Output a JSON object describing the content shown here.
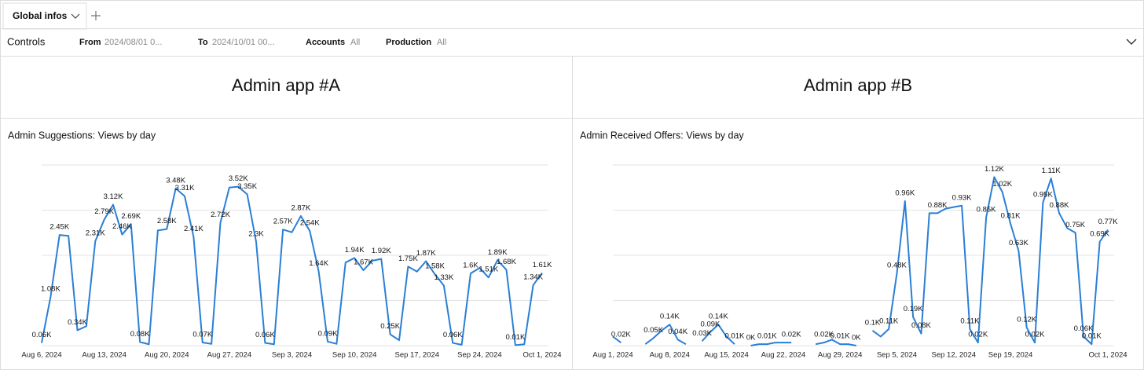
{
  "tabs": [
    {
      "label": "Global infos"
    }
  ],
  "controls": {
    "title": "Controls",
    "filters": [
      {
        "label": "From",
        "value": "2024/08/01 0..."
      },
      {
        "label": "To",
        "value": "2024/10/01 00..."
      },
      {
        "label": "Accounts",
        "value": "All"
      },
      {
        "label": "Production",
        "value": "All"
      }
    ]
  },
  "sections": [
    {
      "title": "Admin app #A"
    },
    {
      "title": "Admin app #B"
    }
  ],
  "chart_data": [
    {
      "type": "line",
      "title": "Admin Suggestions: Views by day",
      "color": "#2a7fd5",
      "x": [
        "2024-08-06",
        "2024-08-07",
        "2024-08-08",
        "2024-08-09",
        "2024-08-10",
        "2024-08-11",
        "2024-08-12",
        "2024-08-13",
        "2024-08-14",
        "2024-08-15",
        "2024-08-16",
        "2024-08-17",
        "2024-08-18",
        "2024-08-19",
        "2024-08-20",
        "2024-08-21",
        "2024-08-22",
        "2024-08-23",
        "2024-08-24",
        "2024-08-25",
        "2024-08-26",
        "2024-08-27",
        "2024-08-28",
        "2024-08-29",
        "2024-08-30",
        "2024-08-31",
        "2024-09-01",
        "2024-09-02",
        "2024-09-03",
        "2024-09-04",
        "2024-09-05",
        "2024-09-06",
        "2024-09-07",
        "2024-09-08",
        "2024-09-09",
        "2024-09-10",
        "2024-09-11",
        "2024-09-12",
        "2024-09-13",
        "2024-09-14",
        "2024-09-15",
        "2024-09-16",
        "2024-09-17",
        "2024-09-18",
        "2024-09-19",
        "2024-09-20",
        "2024-09-21",
        "2024-09-22",
        "2024-09-23",
        "2024-09-24",
        "2024-09-25",
        "2024-09-26",
        "2024-09-27",
        "2024-09-28",
        "2024-09-29",
        "2024-09-30",
        "2024-10-01"
      ],
      "values": [
        60,
        1080,
        2450,
        2430,
        340,
        430,
        2310,
        2790,
        3120,
        2460,
        2690,
        80,
        30,
        2550,
        2580,
        3480,
        3310,
        2410,
        70,
        40,
        2720,
        3500,
        3520,
        3350,
        2300,
        60,
        30,
        2570,
        2510,
        2870,
        2540,
        1640,
        90,
        40,
        1840,
        1940,
        1670,
        1880,
        1920,
        250,
        120,
        1750,
        1640,
        1870,
        1580,
        1330,
        60,
        20,
        1600,
        1720,
        1510,
        1890,
        1680,
        10,
        30,
        1340,
        1610
      ],
      "value_labels": [
        "0.06K",
        "1.08K",
        "2.45K",
        null,
        "0.34K",
        null,
        "2.31K",
        "2.79K",
        "3.12K",
        "2.46K",
        "2.69K",
        "0.08K",
        null,
        null,
        "2.58K",
        "3.48K",
        "3.31K",
        "2.41K",
        "0.07K",
        null,
        "2.72K",
        null,
        "3.52K",
        "3.35K",
        "2.3K",
        "0.06K",
        null,
        "2.57K",
        null,
        "2.87K",
        "2.54K",
        "1.64K",
        "0.09K",
        null,
        null,
        "1.94K",
        "1.67K",
        null,
        "1.92K",
        "0.25K",
        null,
        "1.75K",
        null,
        "1.87K",
        "1.58K",
        "1.33K",
        "0.06K",
        null,
        "1.6K",
        null,
        "1.51K",
        "1.89K",
        "1.68K",
        "0.01K",
        null,
        "1.34K",
        "1.61K"
      ],
      "xlim": [
        "2024-08-06",
        "2024-10-01"
      ],
      "xticks": [
        {
          "value": "2024-08-06",
          "label": "Aug 6, 2024"
        },
        {
          "value": "2024-08-13",
          "label": "Aug 13, 2024"
        },
        {
          "value": "2024-08-20",
          "label": "Aug 20, 2024"
        },
        {
          "value": "2024-08-27",
          "label": "Aug 27, 2024"
        },
        {
          "value": "2024-09-03",
          "label": "Sep 3, 2024"
        },
        {
          "value": "2024-09-10",
          "label": "Sep 10, 2024"
        },
        {
          "value": "2024-09-17",
          "label": "Sep 17, 2024"
        },
        {
          "value": "2024-09-24",
          "label": "Sep 24, 2024"
        },
        {
          "value": "2024-10-01",
          "label": "Oct 1, 2024"
        }
      ],
      "ylim": [
        0,
        4000
      ],
      "ygrid": [
        0,
        1000,
        2000,
        3000,
        4000
      ]
    },
    {
      "type": "line",
      "title": "Admin Received Offers: Views by day",
      "color": "#2a7fd5",
      "x": [
        "2024-08-01",
        "2024-08-02",
        "2024-08-03",
        "2024-08-04",
        "2024-08-05",
        "2024-08-06",
        "2024-08-07",
        "2024-08-08",
        "2024-08-09",
        "2024-08-10",
        "2024-08-11",
        "2024-08-12",
        "2024-08-13",
        "2024-08-14",
        "2024-08-15",
        "2024-08-16",
        "2024-08-17",
        "2024-08-18",
        "2024-08-19",
        "2024-08-20",
        "2024-08-21",
        "2024-08-22",
        "2024-08-23",
        "2024-08-24",
        "2024-08-25",
        "2024-08-26",
        "2024-08-27",
        "2024-08-28",
        "2024-08-29",
        "2024-08-30",
        "2024-08-31",
        "2024-09-01",
        "2024-09-02",
        "2024-09-03",
        "2024-09-04",
        "2024-09-05",
        "2024-09-06",
        "2024-09-07",
        "2024-09-08",
        "2024-09-09",
        "2024-09-10",
        "2024-09-11",
        "2024-09-12",
        "2024-09-13",
        "2024-09-14",
        "2024-09-15",
        "2024-09-16",
        "2024-09-17",
        "2024-09-18",
        "2024-09-19",
        "2024-09-20",
        "2024-09-21",
        "2024-09-22",
        "2024-09-23",
        "2024-09-24",
        "2024-09-25",
        "2024-09-26",
        "2024-09-27",
        "2024-09-28",
        "2024-09-29",
        "2024-09-30",
        "2024-10-01"
      ],
      "values": [
        60,
        20,
        null,
        null,
        10,
        50,
        100,
        140,
        40,
        10,
        null,
        30,
        90,
        140,
        60,
        10,
        null,
        0,
        10,
        10,
        20,
        20,
        20,
        null,
        null,
        10,
        20,
        40,
        10,
        10,
        0,
        null,
        100,
        60,
        110,
        480,
        960,
        190,
        80,
        880,
        880,
        910,
        920,
        930,
        110,
        20,
        850,
        1120,
        1020,
        810,
        630,
        120,
        20,
        950,
        1110,
        880,
        780,
        750,
        60,
        10,
        690,
        770
      ],
      "value_labels": [
        null,
        "0.02K",
        null,
        null,
        null,
        "0.05K",
        null,
        "0.14K",
        "0.04K",
        null,
        null,
        "0.03K",
        "0.09K",
        "0.14K",
        null,
        "0.01K",
        null,
        "0K",
        null,
        "0.01K",
        null,
        null,
        "0.02K",
        null,
        null,
        null,
        "0.02K",
        null,
        "0.01K",
        null,
        "0K",
        null,
        "0.1K",
        null,
        "0.11K",
        "0.48K",
        "0.96K",
        "0.19K",
        "0.08K",
        null,
        "0.88K",
        null,
        null,
        "0.93K",
        "0.11K",
        "0.02K",
        "0.85K",
        "1.12K",
        "1.02K",
        "0.81K",
        "0.63K",
        "0.12K",
        "0.02K",
        "0.95K",
        "1.11K",
        "0.88K",
        null,
        "0.75K",
        "0.06K",
        "0.01K",
        "0.69K",
        "0.77K"
      ],
      "xlim": [
        "2024-08-01",
        "2024-10-01"
      ],
      "xticks": [
        {
          "value": "2024-08-01",
          "label": "Aug 1, 2024"
        },
        {
          "value": "2024-08-08",
          "label": "Aug 8, 2024"
        },
        {
          "value": "2024-08-15",
          "label": "Aug 15, 2024"
        },
        {
          "value": "2024-08-22",
          "label": "Aug 22, 2024"
        },
        {
          "value": "2024-08-29",
          "label": "Aug 29, 2024"
        },
        {
          "value": "2024-09-05",
          "label": "Sep 5, 2024"
        },
        {
          "value": "2024-09-12",
          "label": "Sep 12, 2024"
        },
        {
          "value": "2024-09-19",
          "label": "Sep 19, 2024"
        },
        {
          "value": "2024-10-01",
          "label": "Oct 1, 2024"
        }
      ],
      "ylim": [
        0,
        1200
      ],
      "ygrid": [
        0,
        300,
        600,
        900,
        1200
      ]
    }
  ]
}
